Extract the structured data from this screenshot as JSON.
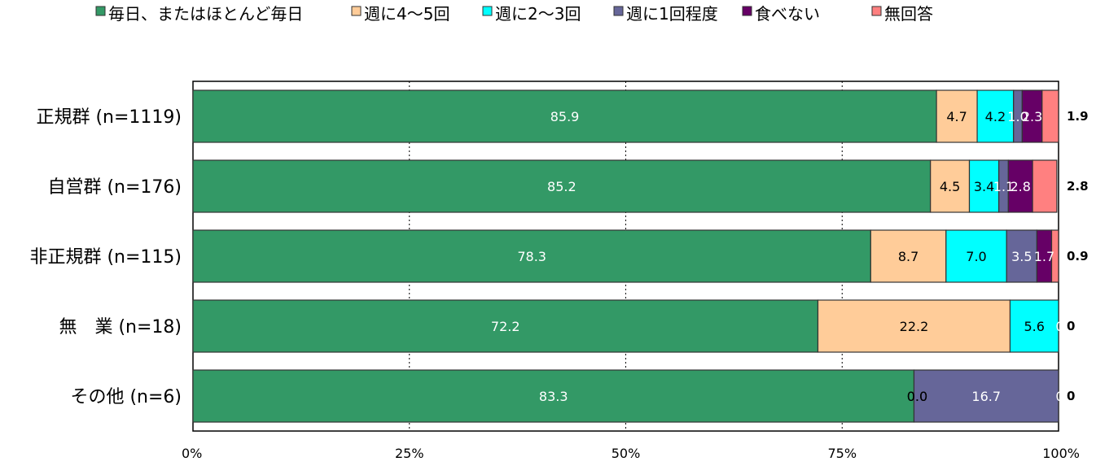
{
  "chart_data": {
    "type": "bar",
    "orientation": "horizontal",
    "stacked": true,
    "percent": true,
    "xlim": [
      0,
      100
    ],
    "x_ticks": [
      "0%",
      "25%",
      "50%",
      "75%",
      "100%"
    ],
    "grid": true,
    "legend_position": "top",
    "categories": [
      "正規群 (n=1119)",
      "自営群 (n=176)",
      "非正規群 (n=115)",
      "無　業 (n=18)",
      "その他 (n=6)"
    ],
    "series": [
      {
        "name": "毎日、またはほとんど毎日",
        "color": "#339966",
        "label_color": "#ffffff",
        "values": [
          85.9,
          85.2,
          78.3,
          72.2,
          83.3
        ],
        "labels": [
          "85.9",
          "85.2",
          "78.3",
          "72.2",
          "83.3"
        ]
      },
      {
        "name": "週に4～5回",
        "color": "#ffcc99",
        "label_color": "#000000",
        "values": [
          4.7,
          4.5,
          8.7,
          22.2,
          0.0
        ],
        "labels": [
          "4.7",
          "4.5",
          "8.7",
          "22.2",
          "0.0"
        ]
      },
      {
        "name": "週に2～3回",
        "color": "#00ffff",
        "label_color": "#000000",
        "values": [
          4.2,
          3.4,
          7.0,
          5.6,
          0.0
        ],
        "labels": [
          "4.2",
          "3.4",
          "7.0",
          "5.6",
          "0.0"
        ]
      },
      {
        "name": "週に1回程度",
        "color": "#666699",
        "label_color": "#ffffff",
        "values": [
          1.0,
          1.1,
          3.5,
          0.0,
          16.7
        ],
        "labels": [
          "1.0",
          "1.1",
          "3.5",
          "0.",
          "16.7"
        ]
      },
      {
        "name": "食べない",
        "color": "#660066",
        "label_color": "#ffffff",
        "values": [
          2.3,
          2.8,
          1.7,
          0.0,
          0.0
        ],
        "labels": [
          "2.3",
          "2.8",
          "1.7",
          "",
          "0."
        ]
      },
      {
        "name": "無回答",
        "color": "#ff8080",
        "label_color": "#000000",
        "values": [
          1.9,
          2.8,
          0.9,
          0.0,
          0.0
        ],
        "labels": [
          "1.9",
          "2.8",
          "0.9",
          "0",
          "0"
        ]
      }
    ]
  }
}
